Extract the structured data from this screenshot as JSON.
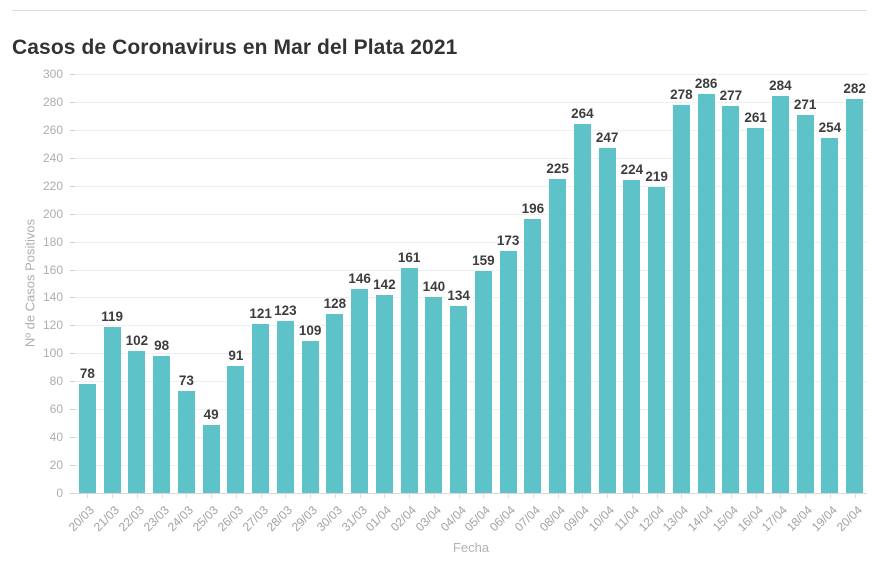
{
  "header": {
    "divider": true
  },
  "chart_data": {
    "type": "bar",
    "title": "Casos de Coronavirus en Mar del Plata 2021",
    "xlabel": "Fecha",
    "ylabel": "Nº de Casos  Positivos",
    "ylim": [
      0,
      300
    ],
    "ytick_step": 20,
    "grid": true,
    "legend_position": "none",
    "bar_color": "#5dc3c9",
    "value_label_color": "#3d3d3d",
    "categories": [
      "20/03",
      "21/03",
      "22/03",
      "23/03",
      "24/03",
      "25/03",
      "26/03",
      "27/03",
      "28/03",
      "29/03",
      "30/03",
      "31/03",
      "01/04",
      "02/04",
      "03/04",
      "04/04",
      "05/04",
      "06/04",
      "07/04",
      "08/04",
      "09/04",
      "10/04",
      "11/04",
      "12/04",
      "13/04",
      "14/04",
      "15/04",
      "16/04",
      "17/04",
      "18/04",
      "19/04",
      "20/04"
    ],
    "values": [
      78,
      119,
      102,
      98,
      73,
      49,
      91,
      121,
      123,
      109,
      128,
      146,
      142,
      161,
      140,
      134,
      159,
      173,
      196,
      225,
      264,
      247,
      224,
      219,
      278,
      286,
      277,
      261,
      284,
      271,
      254,
      282
    ]
  }
}
